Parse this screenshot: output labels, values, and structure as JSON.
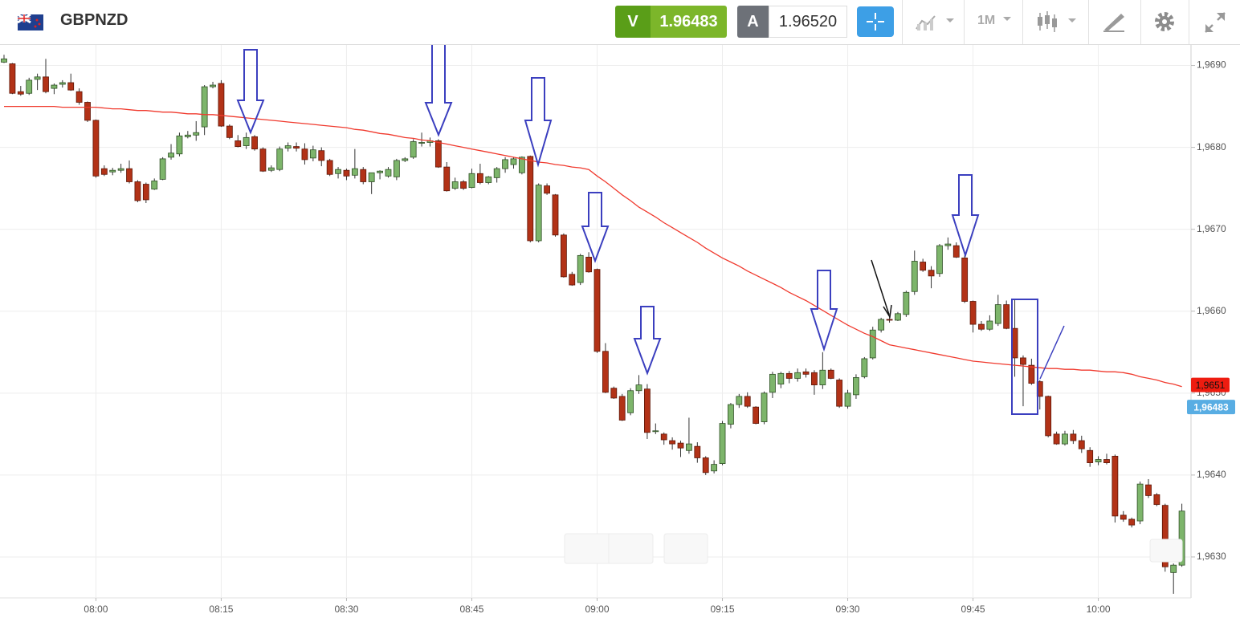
{
  "header": {
    "symbol": "GBPNZD",
    "sell_label": "V",
    "sell_price": "1.96483",
    "buy_label": "A",
    "buy_price": "1.96520",
    "timeframe": "1M"
  },
  "chart_data": {
    "type": "candlestick",
    "up_color": "#7db56b",
    "down_color": "#b23217",
    "x": [
      "07:49",
      "07:50",
      "07:51",
      "07:52",
      "07:53",
      "07:54",
      "07:55",
      "07:56",
      "07:57",
      "07:58",
      "07:59",
      "08:00",
      "08:01",
      "08:02",
      "08:03",
      "08:04",
      "08:05",
      "08:06",
      "08:07",
      "08:08",
      "08:09",
      "08:10",
      "08:11",
      "08:12",
      "08:13",
      "08:14",
      "08:15",
      "08:16",
      "08:17",
      "08:18",
      "08:19",
      "08:20",
      "08:21",
      "08:22",
      "08:23",
      "08:24",
      "08:25",
      "08:26",
      "08:27",
      "08:28",
      "08:29",
      "08:30",
      "08:31",
      "08:32",
      "08:33",
      "08:34",
      "08:35",
      "08:36",
      "08:37",
      "08:38",
      "08:39",
      "08:40",
      "08:41",
      "08:42",
      "08:43",
      "08:44",
      "08:45",
      "08:46",
      "08:47",
      "08:48",
      "08:49",
      "08:50",
      "08:51",
      "08:52",
      "08:53",
      "08:54",
      "08:55",
      "08:56",
      "08:57",
      "08:58",
      "08:59",
      "09:00",
      "09:01",
      "09:02",
      "09:03",
      "09:04",
      "09:05",
      "09:06",
      "09:07",
      "09:08",
      "09:09",
      "09:10",
      "09:11",
      "09:12",
      "09:13",
      "09:14",
      "09:15",
      "09:16",
      "09:17",
      "09:18",
      "09:19",
      "09:20",
      "09:21",
      "09:22",
      "09:23",
      "09:24",
      "09:25",
      "09:26",
      "09:27",
      "09:28",
      "09:29",
      "09:30",
      "09:31",
      "09:32",
      "09:33",
      "09:34",
      "09:35",
      "09:36",
      "09:37",
      "09:38",
      "09:39",
      "09:40",
      "09:41",
      "09:42",
      "09:43",
      "09:44",
      "09:45",
      "09:46",
      "09:47",
      "09:48",
      "09:49",
      "09:50",
      "09:51",
      "09:52",
      "09:53",
      "09:54",
      "09:55",
      "09:56",
      "09:57",
      "09:58",
      "09:59",
      "10:00",
      "10:01",
      "10:02",
      "10:03",
      "10:04",
      "10:05",
      "10:06",
      "10:07",
      "10:08",
      "10:09",
      "10:10"
    ],
    "open": [
      1.96904,
      1.96902,
      1.96868,
      1.96866,
      1.96883,
      1.96886,
      1.96872,
      1.96877,
      1.96879,
      1.96868,
      1.96855,
      1.96833,
      1.96774,
      1.9677,
      1.96772,
      1.96774,
      1.96758,
      1.96755,
      1.96749,
      1.96761,
      1.96788,
      1.96792,
      1.96813,
      1.96815,
      1.96825,
      1.96874,
      1.96878,
      1.96826,
      1.96808,
      1.96802,
      1.96813,
      1.96798,
      1.96772,
      1.96773,
      1.96799,
      1.96801,
      1.96798,
      1.96787,
      1.96796,
      1.96784,
      1.96768,
      1.96772,
      1.96766,
      1.96773,
      1.96758,
      1.96769,
      1.96765,
      1.96764,
      1.96784,
      1.96788,
      1.96805,
      1.96806,
      1.96808,
      1.96776,
      1.9675,
      1.96758,
      1.96751,
      1.96768,
      1.96757,
      1.96763,
      1.96774,
      1.96779,
      1.96769,
      1.96789,
      1.96686,
      1.96753,
      1.96742,
      1.96693,
      1.96645,
      1.96635,
      1.96666,
      1.96651,
      1.96551,
      1.96506,
      1.96496,
      1.96476,
      1.96503,
      1.96505,
      1.96453,
      1.9645,
      1.96442,
      1.96439,
      1.9643,
      1.96435,
      1.96421,
      1.96405,
      1.96414,
      1.96462,
      1.96486,
      1.96496,
      1.96483,
      1.96465,
      1.96501,
      1.96511,
      1.96524,
      1.96518,
      1.96526,
      1.96525,
      1.9651,
      1.96528,
      1.96516,
      1.96484,
      1.96498,
      1.9652,
      1.96543,
      1.96577,
      1.9659,
      1.96589,
      1.96596,
      1.96624,
      1.9666,
      1.9665,
      1.96646,
      1.9668,
      1.9668,
      1.96665,
      1.96612,
      1.96584,
      1.96578,
      1.96585,
      1.96608,
      1.96579,
      1.96543,
      1.96534,
      1.96514,
      1.96496,
      1.9645,
      1.96438,
      1.9645,
      1.96442,
      1.9643,
      1.96416,
      1.96419,
      1.96423,
      1.96351,
      1.96346,
      1.96344,
      1.96388,
      1.96376,
      1.96363,
      1.96281,
      1.9629
    ],
    "high": [
      1.96913,
      1.96903,
      1.96875,
      1.96885,
      1.9689,
      1.96908,
      1.96878,
      1.96882,
      1.9689,
      1.96872,
      1.96856,
      1.96834,
      1.96778,
      1.96775,
      1.9678,
      1.96784,
      1.9676,
      1.96757,
      1.96762,
      1.96788,
      1.96804,
      1.96818,
      1.9682,
      1.96832,
      1.96876,
      1.9688,
      1.96882,
      1.96828,
      1.96815,
      1.96818,
      1.96815,
      1.968,
      1.96778,
      1.96801,
      1.96806,
      1.96806,
      1.96805,
      1.96802,
      1.968,
      1.96786,
      1.96776,
      1.96774,
      1.96798,
      1.96776,
      1.96769,
      1.96772,
      1.96776,
      1.96786,
      1.96788,
      1.9681,
      1.96818,
      1.96812,
      1.9681,
      1.96782,
      1.96763,
      1.9676,
      1.96774,
      1.9678,
      1.96765,
      1.96776,
      1.96788,
      1.96788,
      1.96789,
      1.9679,
      1.96756,
      1.96756,
      1.96743,
      1.96695,
      1.96648,
      1.9667,
      1.96672,
      1.96652,
      1.96561,
      1.96508,
      1.96499,
      1.96506,
      1.96522,
      1.96511,
      1.96463,
      1.96452,
      1.96446,
      1.96442,
      1.9647,
      1.9644,
      1.96423,
      1.96418,
      1.96466,
      1.96488,
      1.96499,
      1.96501,
      1.96484,
      1.96502,
      1.96526,
      1.96526,
      1.96527,
      1.9653,
      1.9653,
      1.96528,
      1.9655,
      1.9653,
      1.96518,
      1.96504,
      1.96523,
      1.96544,
      1.96581,
      1.96592,
      1.96593,
      1.96599,
      1.96625,
      1.96674,
      1.96664,
      1.96655,
      1.96682,
      1.9669,
      1.96684,
      1.96668,
      1.96613,
      1.96588,
      1.96595,
      1.9662,
      1.96613,
      1.96614,
      1.96546,
      1.96542,
      1.96516,
      1.96497,
      1.96453,
      1.96454,
      1.96455,
      1.96448,
      1.96434,
      1.96423,
      1.96426,
      1.96425,
      1.96356,
      1.96348,
      1.96392,
      1.96395,
      1.96378,
      1.96365,
      1.96292,
      1.96365
    ],
    "low": [
      1.96903,
      1.96865,
      1.96863,
      1.96864,
      1.9687,
      1.96866,
      1.96865,
      1.96873,
      1.96869,
      1.96852,
      1.96831,
      1.96763,
      1.96765,
      1.96766,
      1.96769,
      1.96756,
      1.96733,
      1.96732,
      1.96748,
      1.9676,
      1.96785,
      1.96789,
      1.96811,
      1.96808,
      1.96815,
      1.96872,
      1.96825,
      1.9681,
      1.968,
      1.96798,
      1.96796,
      1.9677,
      1.9677,
      1.96771,
      1.96795,
      1.96795,
      1.96779,
      1.96783,
      1.96777,
      1.96765,
      1.96762,
      1.9676,
      1.96762,
      1.96755,
      1.96743,
      1.96761,
      1.96763,
      1.9676,
      1.96782,
      1.96786,
      1.96801,
      1.96801,
      1.96775,
      1.96746,
      1.96748,
      1.96748,
      1.9675,
      1.96755,
      1.96755,
      1.96757,
      1.96769,
      1.96774,
      1.96767,
      1.96684,
      1.96684,
      1.96742,
      1.96691,
      1.96641,
      1.96631,
      1.96632,
      1.96647,
      1.96549,
      1.965,
      1.96493,
      1.96466,
      1.96473,
      1.96499,
      1.96444,
      1.9645,
      1.96437,
      1.96431,
      1.96422,
      1.96426,
      1.96415,
      1.964,
      1.96402,
      1.96412,
      1.96457,
      1.96482,
      1.96482,
      1.96462,
      1.96462,
      1.96494,
      1.96506,
      1.96512,
      1.96514,
      1.96519,
      1.96498,
      1.96505,
      1.96517,
      1.96482,
      1.96481,
      1.96493,
      1.96518,
      1.96541,
      1.96574,
      1.96586,
      1.96588,
      1.96593,
      1.9662,
      1.96648,
      1.96628,
      1.96642,
      1.96675,
      1.96665,
      1.9661,
      1.96574,
      1.96576,
      1.96576,
      1.96582,
      1.96578,
      1.9652,
      1.96484,
      1.9651,
      1.9648,
      1.96446,
      1.96437,
      1.96436,
      1.96438,
      1.96427,
      1.9641,
      1.96412,
      1.96413,
      1.96342,
      1.96343,
      1.96336,
      1.9634,
      1.96372,
      1.96362,
      1.96282,
      1.96255,
      1.96288
    ],
    "close": [
      1.96908,
      1.96866,
      1.96865,
      1.96882,
      1.96886,
      1.96868,
      1.96876,
      1.96879,
      1.9687,
      1.96855,
      1.96833,
      1.96765,
      1.96767,
      1.96772,
      1.96774,
      1.96758,
      1.96735,
      1.96736,
      1.96759,
      1.96786,
      1.96793,
      1.96814,
      1.96815,
      1.96818,
      1.96874,
      1.96876,
      1.96826,
      1.96812,
      1.96801,
      1.96812,
      1.96798,
      1.96771,
      1.96775,
      1.96798,
      1.96802,
      1.96799,
      1.96785,
      1.96797,
      1.96784,
      1.96767,
      1.96773,
      1.96765,
      1.96774,
      1.96758,
      1.96769,
      1.96771,
      1.96773,
      1.96784,
      1.96786,
      1.96807,
      1.96806,
      1.96808,
      1.96776,
      1.96747,
      1.96758,
      1.9675,
      1.96768,
      1.96757,
      1.96764,
      1.96774,
      1.96785,
      1.96786,
      1.96788,
      1.96686,
      1.96754,
      1.96744,
      1.96693,
      1.96642,
      1.96632,
      1.96668,
      1.96648,
      1.96551,
      1.96501,
      1.96494,
      1.96467,
      1.96503,
      1.9651,
      1.96452,
      1.96454,
      1.96443,
      1.96438,
      1.96433,
      1.96438,
      1.96421,
      1.96403,
      1.96413,
      1.96463,
      1.96486,
      1.96496,
      1.96484,
      1.96463,
      1.965,
      1.96523,
      1.96524,
      1.96518,
      1.96525,
      1.96523,
      1.9651,
      1.96528,
      1.96518,
      1.96484,
      1.965,
      1.96519,
      1.96542,
      1.96577,
      1.9659,
      1.96589,
      1.96597,
      1.96623,
      1.96661,
      1.9665,
      1.96643,
      1.9668,
      1.96682,
      1.96666,
      1.96612,
      1.96584,
      1.96578,
      1.96588,
      1.96608,
      1.96579,
      1.96543,
      1.96535,
      1.96512,
      1.96496,
      1.96448,
      1.96438,
      1.9645,
      1.96442,
      1.96432,
      1.96415,
      1.96419,
      1.96415,
      1.9635,
      1.96346,
      1.96339,
      1.96389,
      1.96375,
      1.96364,
      1.96288,
      1.9629,
      1.96356
    ],
    "series": [
      {
        "color": "#f03a2e",
        "values": [
          1.9685,
          1.9685,
          1.9685,
          1.9685,
          1.9685,
          1.9685,
          1.9685,
          1.96849,
          1.96849,
          1.96849,
          1.96849,
          1.96849,
          1.96848,
          1.96847,
          1.96847,
          1.96846,
          1.96845,
          1.96845,
          1.96844,
          1.96843,
          1.96843,
          1.96842,
          1.96841,
          1.96841,
          1.9684,
          1.9684,
          1.96839,
          1.96838,
          1.96837,
          1.96836,
          1.96835,
          1.96834,
          1.96833,
          1.96832,
          1.96831,
          1.9683,
          1.96829,
          1.96828,
          1.96827,
          1.96826,
          1.96825,
          1.96824,
          1.96822,
          1.96821,
          1.96819,
          1.96817,
          1.96816,
          1.96814,
          1.96812,
          1.96811,
          1.96809,
          1.96808,
          1.96806,
          1.96804,
          1.96802,
          1.968,
          1.96798,
          1.96796,
          1.96794,
          1.96792,
          1.9679,
          1.96788,
          1.96786,
          1.96784,
          1.96782,
          1.96781,
          1.96779,
          1.96778,
          1.96776,
          1.96775,
          1.96773,
          1.96765,
          1.96758,
          1.9675,
          1.96742,
          1.96735,
          1.96727,
          1.96721,
          1.96715,
          1.96708,
          1.96702,
          1.96696,
          1.9669,
          1.96684,
          1.96677,
          1.96671,
          1.96665,
          1.9666,
          1.96655,
          1.96649,
          1.96644,
          1.96639,
          1.96634,
          1.96629,
          1.96623,
          1.96618,
          1.96613,
          1.96607,
          1.96601,
          1.96595,
          1.96589,
          1.96583,
          1.96578,
          1.96573,
          1.96569,
          1.96564,
          1.96559,
          1.96557,
          1.96555,
          1.96553,
          1.96551,
          1.96549,
          1.96547,
          1.96545,
          1.96543,
          1.96541,
          1.96539,
          1.96538,
          1.96537,
          1.96536,
          1.96535,
          1.96534,
          1.96533,
          1.96532,
          1.96531,
          1.9653,
          1.9653,
          1.96529,
          1.96529,
          1.96528,
          1.96528,
          1.96527,
          1.96526,
          1.96526,
          1.96525,
          1.96523,
          1.9652,
          1.96518,
          1.96516,
          1.96513,
          1.96511,
          1.96508
        ]
      }
    ],
    "price_tags": [
      {
        "value": 1.9651,
        "label": "1,9651",
        "color": "#ee1c10"
      },
      {
        "value": 1.96483,
        "label": "1,96483",
        "color": "#58ade3"
      }
    ],
    "xlim": [
      "07:49",
      "10:11"
    ],
    "xticks": [
      "08:00",
      "08:15",
      "08:30",
      "08:45",
      "09:00",
      "09:15",
      "09:30",
      "09:45",
      "10:00"
    ],
    "ylim": [
      1.9625,
      1.96926
    ],
    "yticks": [
      {
        "value": 1.963,
        "label": "1,9630"
      },
      {
        "value": 1.964,
        "label": "1,9640"
      },
      {
        "value": 1.965,
        "label": "1,9650"
      },
      {
        "value": 1.966,
        "label": "1,9660"
      },
      {
        "value": 1.967,
        "label": "1,9670"
      },
      {
        "value": 1.968,
        "label": "1,9680"
      },
      {
        "value": 1.969,
        "label": "1,9690"
      }
    ],
    "grid": true
  }
}
